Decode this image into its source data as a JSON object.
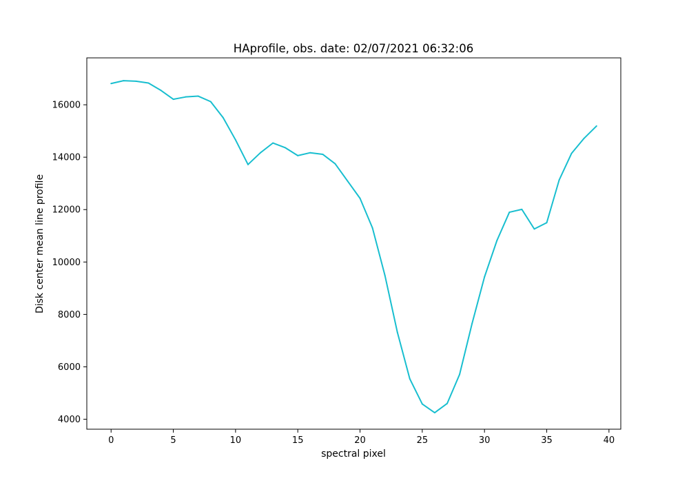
{
  "chart_data": {
    "type": "line",
    "title": "HAprofile, obs. date: 02/07/2021 06:32:06",
    "xlabel": "spectral pixel",
    "ylabel": "Disk center mean line profile",
    "xlim": [
      -1.95,
      40.95
    ],
    "ylim": [
      3620,
      17790
    ],
    "xticks": [
      0,
      5,
      10,
      15,
      20,
      25,
      30,
      35,
      40
    ],
    "xtick_labels": [
      "0",
      "5",
      "10",
      "15",
      "20",
      "25",
      "30",
      "35",
      "40"
    ],
    "yticks": [
      4000,
      6000,
      8000,
      10000,
      12000,
      14000,
      16000
    ],
    "ytick_labels": [
      "4000",
      "6000",
      "8000",
      "10000",
      "12000",
      "14000",
      "16000"
    ],
    "grid": false,
    "legend": "none",
    "series": [
      {
        "color": "#17becf",
        "x": [
          0,
          1,
          2,
          3,
          4,
          5,
          6,
          7,
          8,
          9,
          10,
          11,
          12,
          13,
          14,
          15,
          16,
          17,
          18,
          19,
          20,
          21,
          22,
          23,
          24,
          25,
          26,
          27,
          28,
          29,
          30,
          31,
          32,
          33,
          34,
          35,
          36,
          37,
          38,
          39
        ],
        "y": [
          16810,
          16920,
          16900,
          16830,
          16550,
          16210,
          16300,
          16330,
          16120,
          15510,
          14660,
          13720,
          14170,
          14540,
          14360,
          14060,
          14170,
          14110,
          13750,
          13090,
          12430,
          11300,
          9490,
          7320,
          5540,
          4580,
          4250,
          4600,
          5710,
          7650,
          9430,
          10820,
          11900,
          12010,
          11260,
          11500,
          13130,
          14150,
          14720,
          15190
        ]
      }
    ]
  }
}
